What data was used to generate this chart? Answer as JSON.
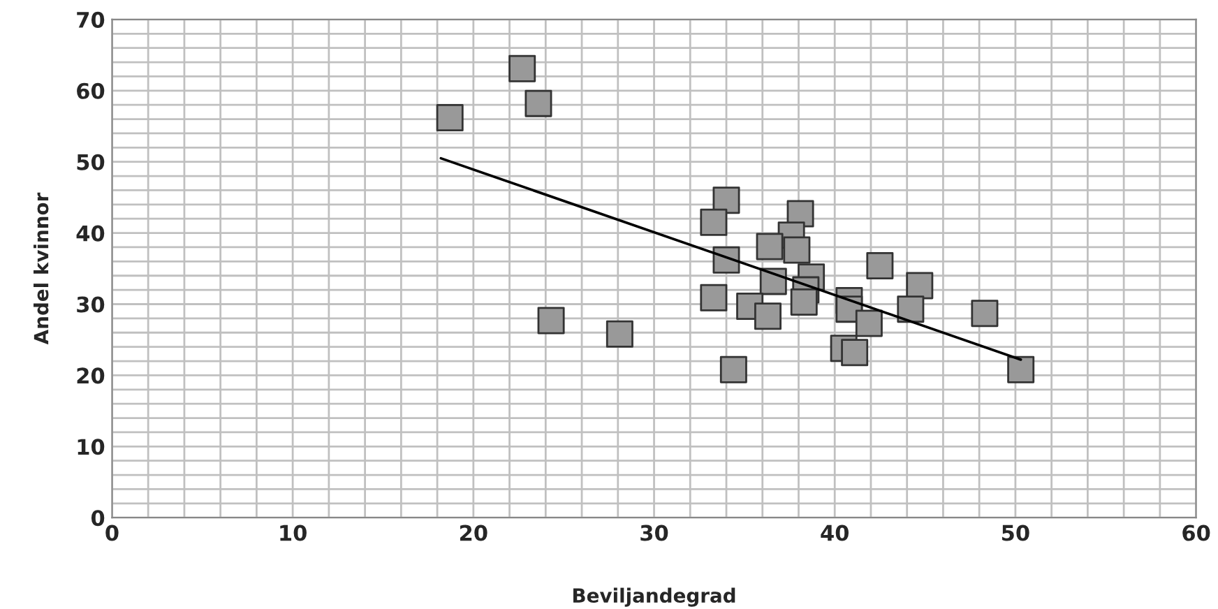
{
  "chart_data": {
    "type": "scatter",
    "xlabel": "Beviljandegrad",
    "ylabel": "Andel kvinnor",
    "xlim": [
      0,
      60
    ],
    "xticks": [
      0,
      10,
      20,
      30,
      40,
      50,
      60
    ],
    "ylim": [
      0,
      70
    ],
    "yticks": [
      0,
      10,
      20,
      30,
      40,
      50,
      60,
      70
    ],
    "grid": true,
    "series": [
      {
        "marker": "square",
        "color": "#999999",
        "x": [
          18.7,
          22.7,
          23.6,
          24.3,
          28.1,
          34.0,
          33.3,
          38.1,
          37.6,
          36.4,
          37.9,
          34.0,
          42.5,
          36.6,
          38.7,
          38.4,
          44.7,
          33.3,
          35.3,
          38.3,
          40.8,
          40.8,
          44.2,
          48.3,
          36.3,
          41.9,
          40.5,
          41.1,
          34.4,
          50.3
        ],
        "values": [
          56.2,
          63.1,
          58.2,
          27.7,
          25.8,
          44.6,
          41.5,
          42.7,
          39.7,
          38.1,
          37.6,
          36.2,
          35.4,
          33.2,
          33.8,
          32.0,
          32.6,
          30.9,
          29.7,
          30.3,
          30.5,
          29.3,
          29.3,
          28.7,
          28.3,
          27.3,
          23.8,
          23.2,
          20.8,
          20.8
        ]
      },
      {
        "type": "line",
        "marker": "none",
        "color": "#000000",
        "x": [
          18.2,
          50.3
        ],
        "values": [
          50.5,
          22.2
        ]
      }
    ]
  }
}
